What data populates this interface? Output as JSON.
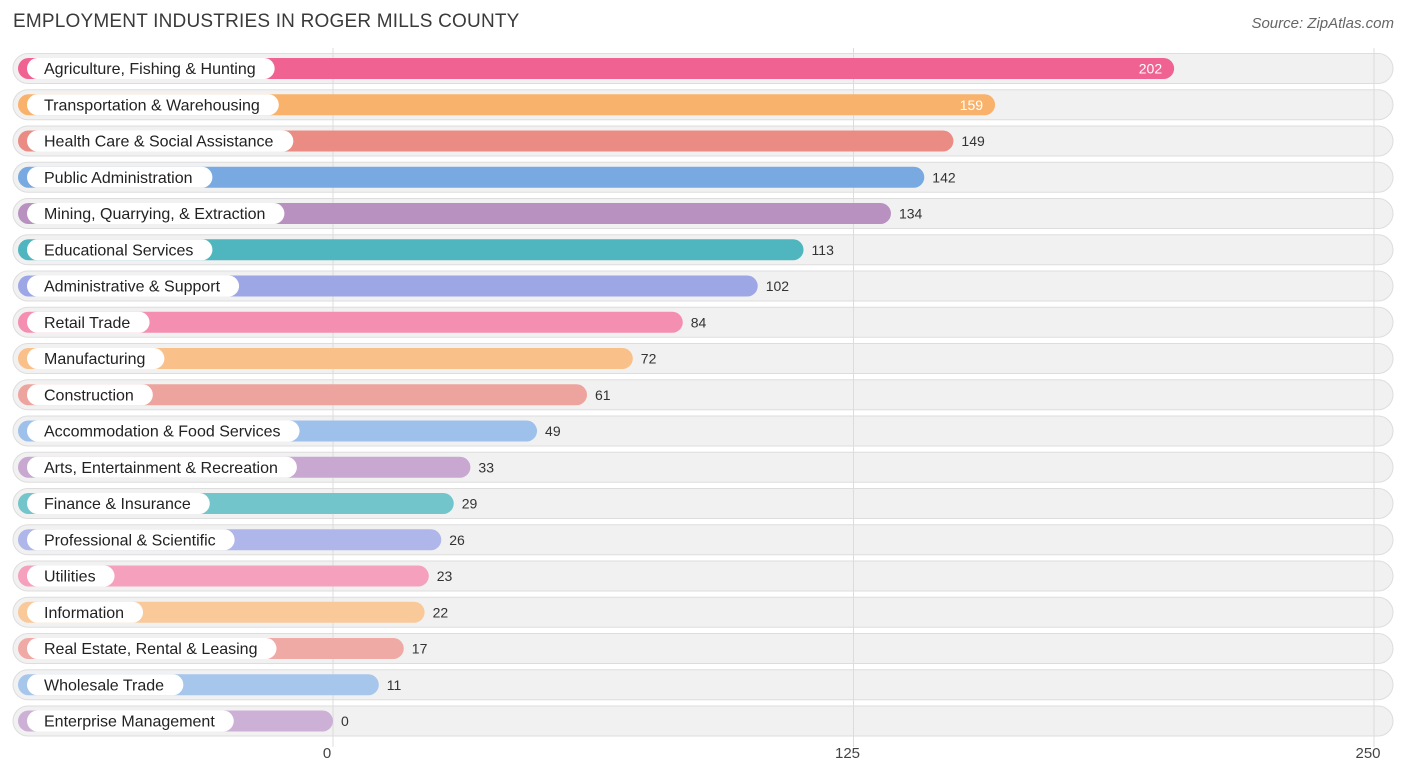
{
  "chart_data": {
    "type": "bar",
    "orientation": "horizontal",
    "title": "EMPLOYMENT INDUSTRIES IN ROGER MILLS COUNTY",
    "source": "Source: ZipAtlas.com",
    "xlim": [
      0,
      250
    ],
    "ticks": [
      0,
      125,
      250
    ],
    "grid": true,
    "categories": [
      "Agriculture, Fishing & Hunting",
      "Transportation & Warehousing",
      "Health Care & Social Assistance",
      "Public Administration",
      "Mining, Quarrying, & Extraction",
      "Educational Services",
      "Administrative & Support",
      "Retail Trade",
      "Manufacturing",
      "Construction",
      "Accommodation & Food Services",
      "Arts, Entertainment & Recreation",
      "Finance & Insurance",
      "Professional & Scientific",
      "Utilities",
      "Information",
      "Real Estate, Rental & Leasing",
      "Wholesale Trade",
      "Enterprise Management"
    ],
    "values": [
      202,
      159,
      149,
      142,
      134,
      113,
      102,
      84,
      72,
      61,
      49,
      33,
      29,
      26,
      23,
      22,
      17,
      11,
      0
    ],
    "colors": [
      "#f06292",
      "#f9b26b",
      "#ea8b84",
      "#78a9e0",
      "#b991c1",
      "#4fb6bf",
      "#9ea7e6",
      "#f48fb1",
      "#f9c08a",
      "#eea49e",
      "#9dc1ea",
      "#c8a8d0",
      "#72c6cb",
      "#aeb6ea",
      "#f5a0bd",
      "#f9c999",
      "#f0aaa6",
      "#a6c6ec",
      "#cdb0d6"
    ]
  }
}
